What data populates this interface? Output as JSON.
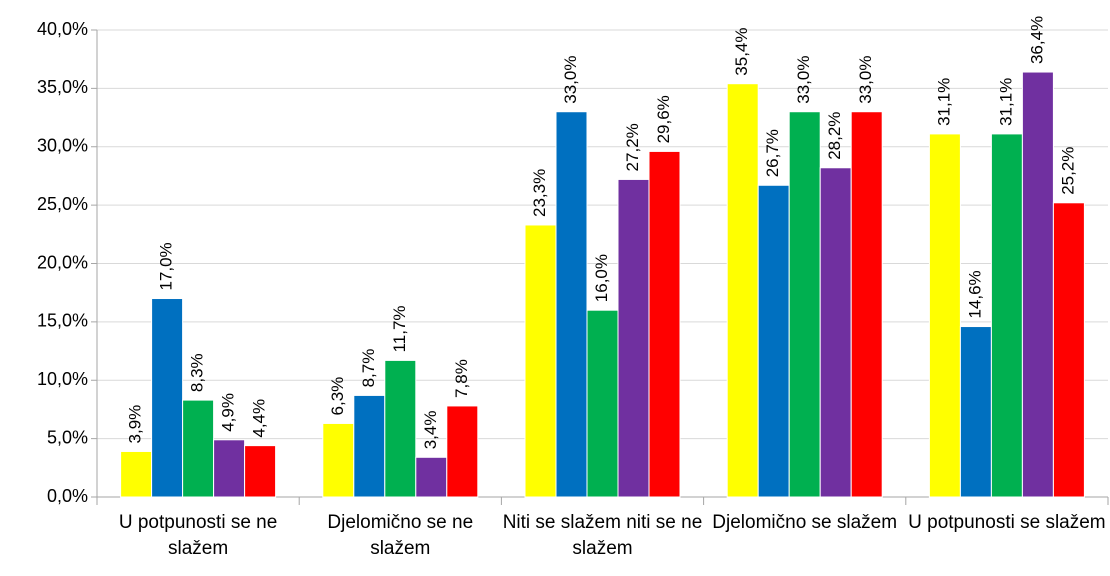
{
  "chart_data": {
    "type": "bar",
    "categories": [
      "U potpunosti se ne slažem",
      "Djelomično se ne slažem",
      "Niti se slažem niti se ne slažem",
      "Djelomično se slažem",
      "U potpunosti se slažem"
    ],
    "series": [
      {
        "color": "#ffff00",
        "values": [
          3.9,
          6.3,
          23.3,
          35.4,
          31.1
        ],
        "value_labels": [
          "3,9%",
          "6,3%",
          "23,3%",
          "35,4%",
          "31,1%"
        ]
      },
      {
        "color": "#0070c0",
        "values": [
          17.0,
          8.7,
          33.0,
          26.7,
          14.6
        ],
        "value_labels": [
          "17,0%",
          "8,7%",
          "33,0%",
          "26,7%",
          "14,6%"
        ]
      },
      {
        "color": "#00b050",
        "values": [
          8.3,
          11.7,
          16.0,
          33.0,
          31.1
        ],
        "value_labels": [
          "8,3%",
          "11,7%",
          "16,0%",
          "33,0%",
          "31,1%"
        ]
      },
      {
        "color": "#7030a0",
        "values": [
          4.9,
          3.4,
          27.2,
          28.2,
          36.4
        ],
        "value_labels": [
          "4,9%",
          "3,4%",
          "27,2%",
          "28,2%",
          "36,4%"
        ]
      },
      {
        "color": "#ff0000",
        "values": [
          4.4,
          7.8,
          29.6,
          33.0,
          25.2
        ],
        "value_labels": [
          "4,4%",
          "7,8%",
          "29,6%",
          "33,0%",
          "25,2%"
        ]
      }
    ],
    "ylim": [
      0,
      40
    ],
    "yticks": [
      {
        "value": 0,
        "label": "0,0%"
      },
      {
        "value": 5,
        "label": "5,0%"
      },
      {
        "value": 10,
        "label": "10,0%"
      },
      {
        "value": 15,
        "label": "15,0%"
      },
      {
        "value": 20,
        "label": "20,0%"
      },
      {
        "value": 25,
        "label": "25,0%"
      },
      {
        "value": 30,
        "label": "30,0%"
      },
      {
        "value": 35,
        "label": "35,0%"
      },
      {
        "value": 40,
        "label": "40,0%"
      }
    ],
    "grid": true
  }
}
